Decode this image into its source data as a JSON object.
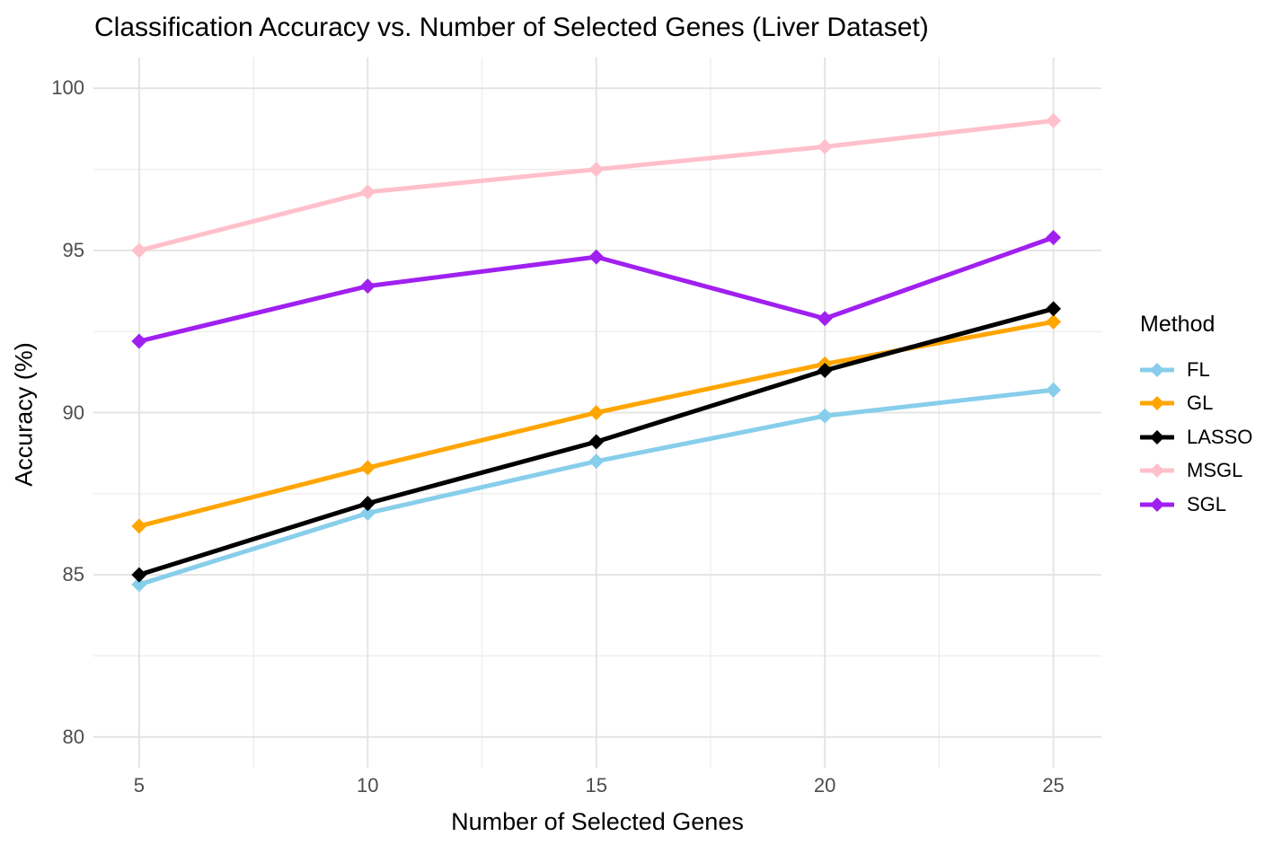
{
  "title": "Classification Accuracy vs. Number of Selected Genes (Liver Dataset)",
  "axes": {
    "x_label": "Number of Selected Genes",
    "y_label": "Accuracy (%)",
    "x_tick_labels": [
      "5",
      "10",
      "15",
      "20",
      "25"
    ],
    "y_tick_labels": [
      "80",
      "85",
      "90",
      "95",
      "100"
    ]
  },
  "legend": {
    "title": "Method",
    "position": "right",
    "items": [
      "FL",
      "GL",
      "LASSO",
      "MSGL",
      "SGL"
    ]
  },
  "colors": {
    "background": "#ffffff",
    "grid_major": "#e2e2e2",
    "grid_minor": "#ececec",
    "axis_text": "#4d4d4d",
    "title_text": "#000000"
  },
  "chart_data": {
    "type": "line",
    "title": "Classification Accuracy vs. Number of Selected Genes (Liver Dataset)",
    "xlabel": "Number of Selected Genes",
    "ylabel": "Accuracy (%)",
    "x": [
      5,
      10,
      15,
      20,
      25
    ],
    "series": [
      {
        "name": "FL",
        "color": "#87CEEB",
        "values": [
          84.7,
          86.9,
          88.5,
          89.9,
          90.7
        ]
      },
      {
        "name": "GL",
        "color": "#FFA500",
        "values": [
          86.5,
          88.3,
          90.0,
          91.5,
          92.8
        ]
      },
      {
        "name": "LASSO",
        "color": "#000000",
        "values": [
          85.0,
          87.2,
          89.1,
          91.3,
          93.2
        ]
      },
      {
        "name": "MSGL",
        "color": "#FFC0CB",
        "values": [
          95.0,
          96.8,
          97.5,
          98.2,
          99.0
        ]
      },
      {
        "name": "SGL",
        "color": "#A020F0",
        "values": [
          92.2,
          93.9,
          94.8,
          92.9,
          95.4
        ]
      }
    ],
    "marker": "diamond",
    "grid": true,
    "legend_position": "right",
    "xlim": [
      4,
      26.05
    ],
    "ylim": [
      79.05,
      100.95
    ],
    "x_major": [
      5,
      10,
      15,
      20,
      25
    ],
    "x_minor": [
      7.5,
      12.5,
      17.5,
      22.5
    ],
    "y_major": [
      80,
      85,
      90,
      95,
      100
    ],
    "y_minor": [
      82.5,
      87.5,
      92.5,
      97.5
    ]
  }
}
